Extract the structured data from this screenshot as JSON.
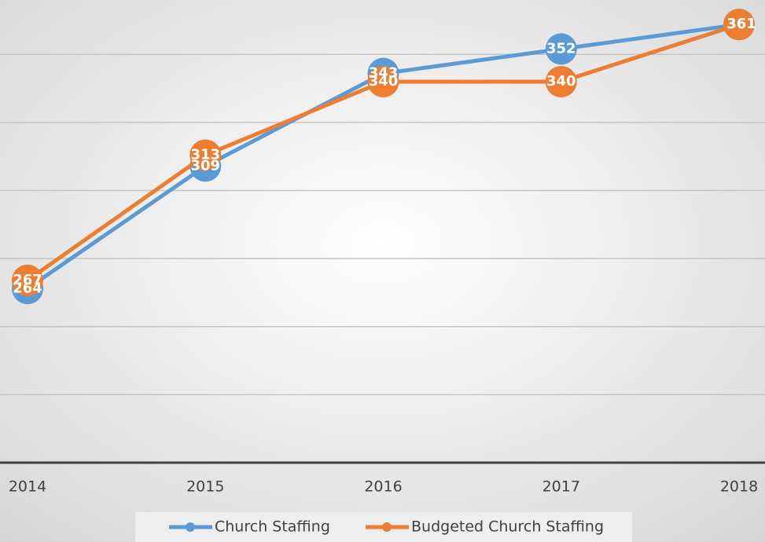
{
  "chart_data": {
    "type": "line",
    "categories": [
      "2014",
      "2015",
      "2016",
      "2017",
      "2018"
    ],
    "series": [
      {
        "name": "Church Staffing",
        "color": "#5b9bd5",
        "values": [
          264,
          309,
          343,
          352,
          361
        ]
      },
      {
        "name": "Budgeted Church Staffing",
        "color": "#ed7d31",
        "values": [
          267,
          313,
          340,
          340,
          361
        ]
      }
    ],
    "ylim": [
      200,
      370
    ],
    "yticks": [
      200,
      225,
      250,
      275,
      300,
      325,
      350
    ],
    "grid": true,
    "legend": "bottom"
  }
}
